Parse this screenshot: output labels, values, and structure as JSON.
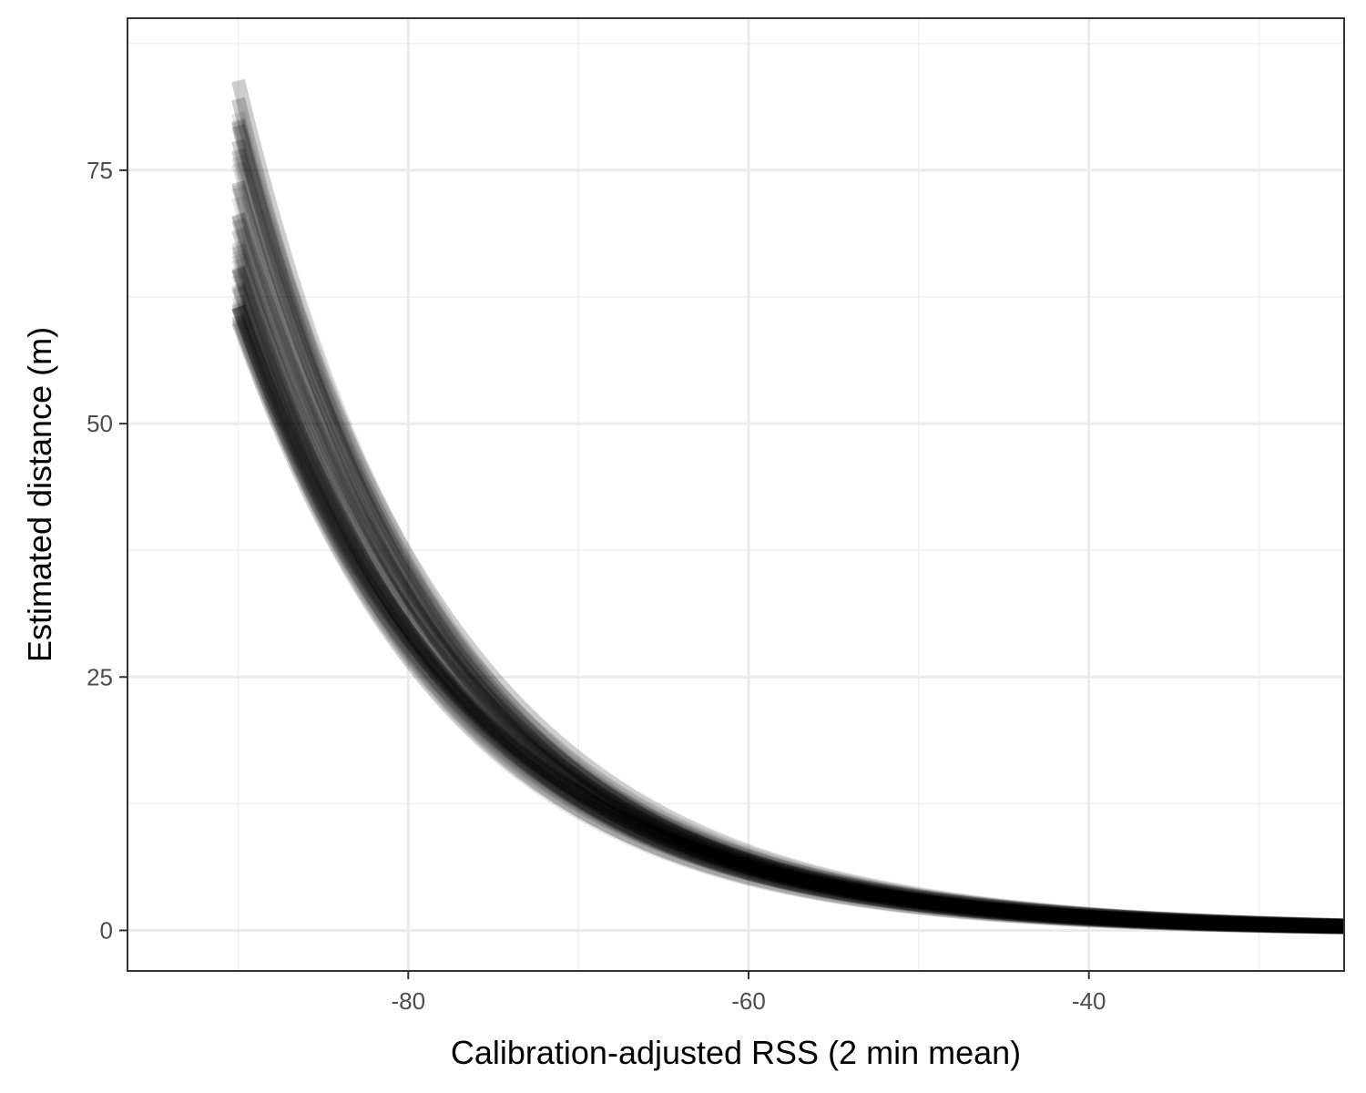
{
  "chart_data": {
    "type": "line",
    "title": "",
    "xlabel": "Calibration-adjusted RSS (2 min mean)",
    "ylabel": "Estimated distance (m)",
    "xlim": [
      -96.5,
      -25
    ],
    "ylim": [
      -4,
      90
    ],
    "x_ticks": [
      -80,
      -60,
      -40
    ],
    "x_tick_labels": [
      "-80",
      "-60",
      "-40"
    ],
    "x_minor_ticks": [
      -90,
      -70,
      -50,
      -30
    ],
    "y_ticks": [
      0,
      25,
      50,
      75
    ],
    "y_tick_labels": [
      "0",
      "25",
      "50",
      "75"
    ],
    "y_minor_ticks": [
      12.5,
      37.5,
      62.5,
      87.5
    ],
    "grid": true,
    "legend": "none",
    "line_color": "#000000",
    "line_alpha": 0.1,
    "line_count": 60,
    "model": "distance = exp((x - a) / b)",
    "curve_x_range": [
      -90,
      -25
    ],
    "series": [
      {
        "x": [
          -90,
          -80,
          -70,
          -60,
          -50,
          -40,
          -30,
          -25
        ],
        "y": [
          68.0,
          29.0,
          13.1,
          5.9,
          2.7,
          1.25,
          0.58,
          0.4
        ]
      },
      {
        "x": [
          -90,
          -80,
          -70,
          -60,
          -50,
          -40,
          -30,
          -25
        ],
        "y": [
          60.0,
          26.5,
          12.0,
          5.4,
          2.5,
          1.15,
          0.53,
          0.37
        ]
      },
      {
        "x": [
          -90,
          -80,
          -70,
          -60,
          -50,
          -40,
          -30,
          -25
        ],
        "y": [
          84.0,
          34.0,
          14.8,
          6.5,
          2.9,
          1.3,
          0.6,
          0.42
        ]
      }
    ]
  }
}
